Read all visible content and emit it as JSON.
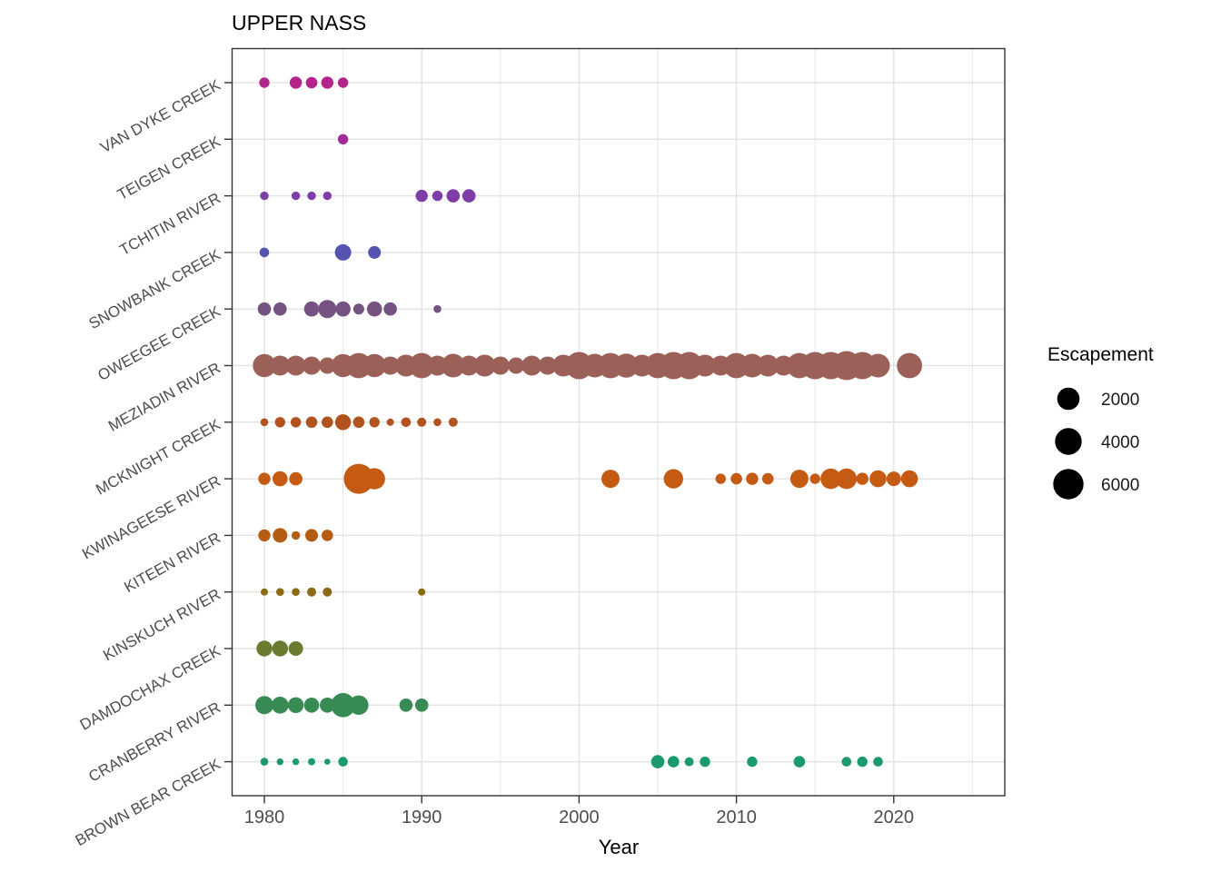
{
  "chart_data": {
    "type": "scatter",
    "subtype": "bubble",
    "title": "UPPER NASS",
    "xlabel": "Year",
    "x_ticks": [
      1980,
      1990,
      2000,
      2010,
      2020
    ],
    "x_minor_ticks": [
      1985,
      1995,
      2005,
      2015,
      2025
    ],
    "x_range": [
      1978,
      2027
    ],
    "grid": true,
    "legend": {
      "title": "Escapement",
      "position": "right",
      "entries": [
        2000,
        4000,
        6000
      ]
    },
    "size_scale": {
      "escapement": [
        10,
        200,
        500,
        1000,
        2000,
        4000,
        6000,
        7500
      ],
      "radius_px": [
        3.2,
        6,
        8,
        10,
        12.3,
        14.7,
        16.7,
        18
      ]
    },
    "categories_top_to_bottom": [
      "VAN DYKE CREEK",
      "TEIGEN CREEK",
      "TCHITIN RIVER",
      "SNOWBANK CREEK",
      "OWEEGEE CREEK",
      "MEZIADIN RIVER",
      "MCKNIGHT CREEK",
      "KWINAGEESE RIVER",
      "KITEEN RIVER",
      "KINSKUCH RIVER",
      "DAMDOCHAX CREEK",
      "CRANBERRY RIVER",
      "BROWN BEAR CREEK"
    ],
    "series": [
      {
        "name": "VAN DYKE CREEK",
        "color": "#b3258b",
        "points": [
          [
            1980,
            180
          ],
          [
            1982,
            305
          ],
          [
            1983,
            245
          ],
          [
            1984,
            305
          ],
          [
            1985,
            180
          ]
        ]
      },
      {
        "name": "TEIGEN CREEK",
        "color": "#a02d97",
        "points": [
          [
            1985,
            180
          ]
        ]
      },
      {
        "name": "TCHITIN RIVER",
        "color": "#7f3ea7",
        "points": [
          [
            1980,
            110
          ],
          [
            1982,
            110
          ],
          [
            1983,
            110
          ],
          [
            1984,
            110
          ],
          [
            1990,
            305
          ],
          [
            1991,
            180
          ],
          [
            1992,
            395
          ],
          [
            1993,
            395
          ]
        ]
      },
      {
        "name": "SNOWBANK CREEK",
        "color": "#5554b1",
        "points": [
          [
            1980,
            150
          ],
          [
            1985,
            750
          ],
          [
            1987,
            350
          ]
        ]
      },
      {
        "name": "OWEEGEE CREEK",
        "color": "#745380",
        "points": [
          [
            1980,
            395
          ],
          [
            1981,
            395
          ],
          [
            1983,
            575
          ],
          [
            1984,
            1000
          ],
          [
            1985,
            575
          ],
          [
            1986,
            200
          ],
          [
            1987,
            575
          ],
          [
            1988,
            395
          ],
          [
            1991,
            85
          ]
        ]
      },
      {
        "name": "MEZIADIN RIVER",
        "color": "#9b6158",
        "points": [
          [
            1980,
            2335
          ],
          [
            1981,
            1435
          ],
          [
            1982,
            1435
          ],
          [
            1983,
            1000
          ],
          [
            1984,
            750
          ],
          [
            1985,
            2335
          ],
          [
            1986,
            3365
          ],
          [
            1987,
            2335
          ],
          [
            1988,
            1000
          ],
          [
            1989,
            1870
          ],
          [
            1990,
            3365
          ],
          [
            1991,
            1435
          ],
          [
            1992,
            2585
          ],
          [
            1993,
            1435
          ],
          [
            1994,
            1870
          ],
          [
            1995,
            1000
          ],
          [
            1996,
            750
          ],
          [
            1997,
            1435
          ],
          [
            1998,
            1000
          ],
          [
            1999,
            1870
          ],
          [
            2000,
            4300
          ],
          [
            2001,
            2585
          ],
          [
            2002,
            3365
          ],
          [
            2003,
            2835
          ],
          [
            2004,
            1870
          ],
          [
            2005,
            3365
          ],
          [
            2006,
            4300
          ],
          [
            2007,
            4300
          ],
          [
            2008,
            1870
          ],
          [
            2009,
            1435
          ],
          [
            2010,
            3365
          ],
          [
            2011,
            2585
          ],
          [
            2012,
            1870
          ],
          [
            2013,
            1435
          ],
          [
            2014,
            3365
          ],
          [
            2015,
            4300
          ],
          [
            2016,
            4300
          ],
          [
            2017,
            5300
          ],
          [
            2018,
            4300
          ],
          [
            2019,
            2585
          ],
          [
            2021,
            3365
          ]
        ]
      },
      {
        "name": "MCKNIGHT CREEK",
        "color": "#b2521e",
        "points": [
          [
            1980,
            85
          ],
          [
            1981,
            180
          ],
          [
            1982,
            180
          ],
          [
            1983,
            245
          ],
          [
            1984,
            245
          ],
          [
            1985,
            675
          ],
          [
            1986,
            245
          ],
          [
            1987,
            180
          ],
          [
            1988,
            65
          ],
          [
            1989,
            150
          ],
          [
            1990,
            130
          ],
          [
            1991,
            85
          ],
          [
            1992,
            130
          ]
        ]
      },
      {
        "name": "KWINAGEESE RIVER",
        "color": "#c55a12",
        "points": [
          [
            1980,
            305
          ],
          [
            1981,
            575
          ],
          [
            1982,
            395
          ],
          [
            1986,
            5800
          ],
          [
            1987,
            1740
          ],
          [
            2002,
            1000
          ],
          [
            2006,
            1305
          ],
          [
            2009,
            180
          ],
          [
            2010,
            245
          ],
          [
            2011,
            305
          ],
          [
            2012,
            245
          ],
          [
            2014,
            1000
          ],
          [
            2015,
            180
          ],
          [
            2016,
            1565
          ],
          [
            2017,
            1565
          ],
          [
            2018,
            305
          ],
          [
            2019,
            825
          ],
          [
            2020,
            500
          ],
          [
            2021,
            825
          ]
        ]
      },
      {
        "name": "KITEEN RIVER",
        "color": "#b55c13",
        "points": [
          [
            1980,
            305
          ],
          [
            1981,
            500
          ],
          [
            1982,
            110
          ],
          [
            1983,
            350
          ],
          [
            1984,
            245
          ]
        ]
      },
      {
        "name": "KINSKUCH RIVER",
        "color": "#8c6a14",
        "points": [
          [
            1980,
            65
          ],
          [
            1981,
            85
          ],
          [
            1982,
            85
          ],
          [
            1983,
            130
          ],
          [
            1984,
            130
          ],
          [
            1990,
            65
          ]
        ]
      },
      {
        "name": "DAMDOCHAX CREEK",
        "color": "#6a7a2e",
        "points": [
          [
            1980,
            675
          ],
          [
            1981,
            675
          ],
          [
            1982,
            500
          ]
        ]
      },
      {
        "name": "CRANBERRY RIVER",
        "color": "#398b56",
        "points": [
          [
            1980,
            1000
          ],
          [
            1981,
            825
          ],
          [
            1982,
            675
          ],
          [
            1983,
            575
          ],
          [
            1984,
            575
          ],
          [
            1985,
            2835
          ],
          [
            1986,
            1305
          ],
          [
            1989,
            395
          ],
          [
            1990,
            395
          ]
        ]
      },
      {
        "name": "BROWN BEAR CREEK",
        "color": "#1a9a6e",
        "points": [
          [
            1980,
            85
          ],
          [
            1981,
            45
          ],
          [
            1982,
            45
          ],
          [
            1983,
            65
          ],
          [
            1984,
            20
          ],
          [
            1985,
            150
          ],
          [
            2005,
            395
          ],
          [
            2006,
            245
          ],
          [
            2007,
            130
          ],
          [
            2008,
            180
          ],
          [
            2011,
            180
          ],
          [
            2014,
            245
          ],
          [
            2017,
            150
          ],
          [
            2018,
            180
          ],
          [
            2019,
            150
          ]
        ]
      }
    ],
    "colors": {
      "background": "#ffffff",
      "grid": "#e4e4e4",
      "panel_border": "#333333",
      "tick": "#333333",
      "axis_text": "#4d4d4d",
      "legend_dot": "#000000"
    }
  }
}
